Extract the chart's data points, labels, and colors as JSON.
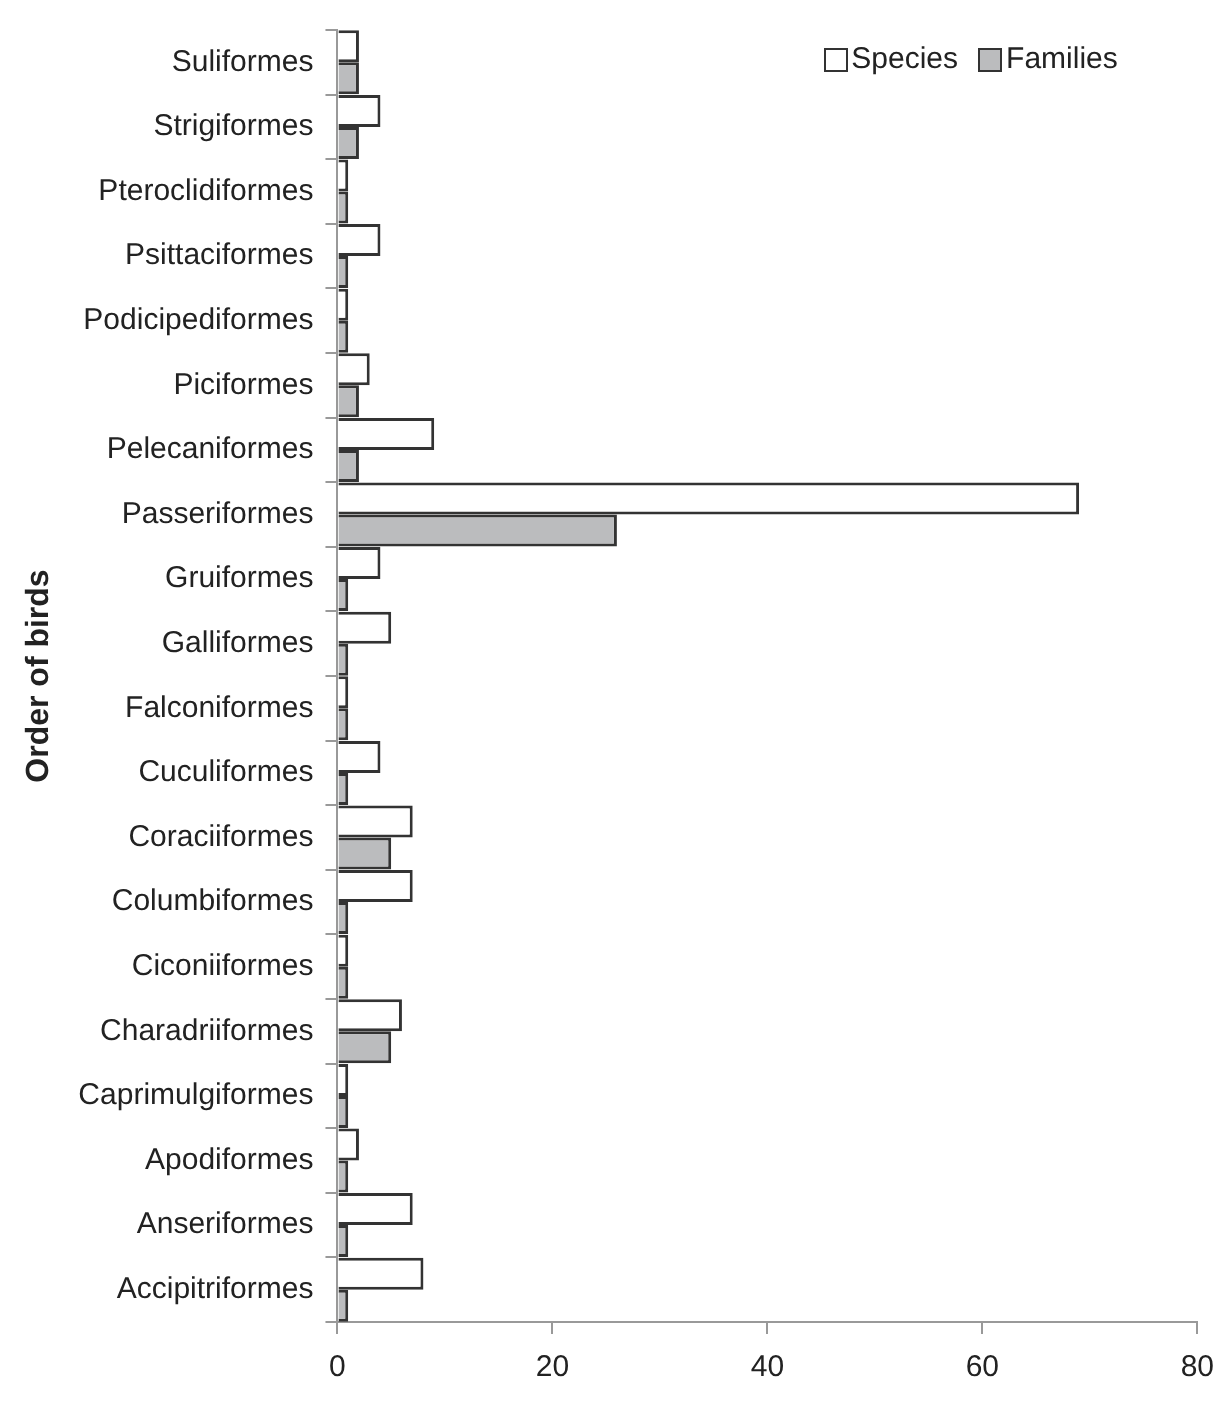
{
  "chart_data": {
    "type": "bar",
    "orientation": "horizontal",
    "ylabel": "Order of birds",
    "categories": [
      "Suliformes",
      "Strigiformes",
      "Pteroclidiformes",
      "Psittaciformes",
      "Podicipediformes",
      "Piciformes",
      "Pelecaniformes",
      "Passeriformes",
      "Gruiformes",
      "Galliformes",
      "Falconiformes",
      "Cuculiformes",
      "Coraciiformes",
      "Columbiformes",
      "Ciconiiformes",
      "Charadriiformes",
      "Caprimulgiformes",
      "Apodiformes",
      "Anseriformes",
      "Accipitriformes"
    ],
    "series": [
      {
        "name": "Species",
        "color": "#ffffff",
        "values": [
          2,
          4,
          1,
          4,
          1,
          3,
          9,
          69,
          4,
          5,
          1,
          4,
          7,
          7,
          1,
          6,
          1,
          2,
          7,
          8
        ]
      },
      {
        "name": "Families",
        "color": "#bbbcbe",
        "values": [
          2,
          2,
          1,
          1,
          1,
          2,
          2,
          26,
          1,
          1,
          1,
          1,
          5,
          1,
          1,
          5,
          1,
          1,
          1,
          1
        ]
      }
    ],
    "xlim": [
      0,
      80
    ],
    "xticks": [
      0,
      20,
      40,
      60,
      80
    ],
    "grid": false,
    "legend": "top right"
  }
}
